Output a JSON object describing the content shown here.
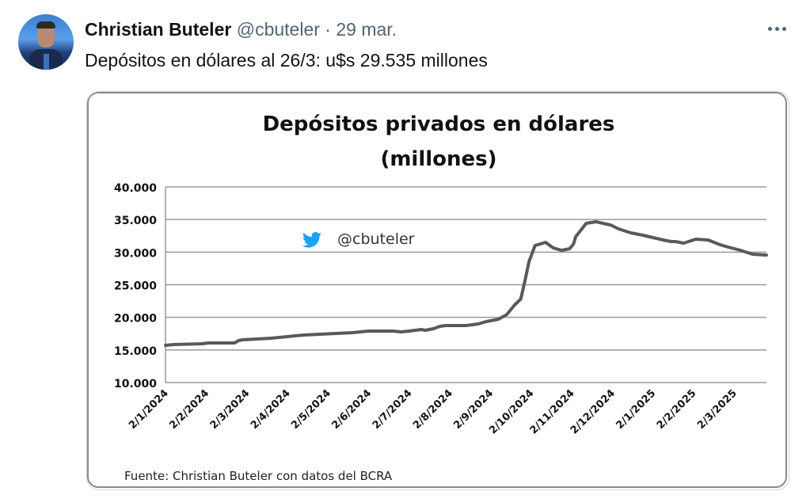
{
  "tweet": {
    "author_name": "Christian Buteler",
    "author_handle": "@cbuteler",
    "separator": "·",
    "date": "29 mar.",
    "text": "Depósitos en dólares al 26/3: u$s 29.535 millones",
    "more_icon": "more-horizontal-icon"
  },
  "chart_data": {
    "type": "line",
    "title": "Depósitos privados en dólares",
    "subtitle": "(millones)",
    "xlabel": "",
    "ylabel": "",
    "watermark": "@cbuteler",
    "watermark_icon": "twitter-bird-icon",
    "source": "Fuente: Christian Buteler con datos del BCRA",
    "ylim": [
      10000,
      40000
    ],
    "yticks": [
      40000,
      35000,
      30000,
      25000,
      20000,
      15000,
      10000
    ],
    "ytick_labels": [
      "40.000",
      "35.000",
      "30.000",
      "25.000",
      "20.000",
      "15.000",
      "10.000"
    ],
    "xtick_labels": [
      "2/1/2024",
      "2/2/2024",
      "2/3/2024",
      "2/4/2024",
      "2/5/2024",
      "2/6/2024",
      "2/7/2024",
      "2/8/2024",
      "2/9/2024",
      "2/10/2024",
      "2/11/2024",
      "2/12/2024",
      "2/1/2025",
      "2/2/2025",
      "2/3/2025"
    ],
    "x_range_months": [
      0,
      14.8
    ],
    "grid": true,
    "line_color": "#595959",
    "series": [
      {
        "name": "Depósitos privados en dólares",
        "x_months": [
          0,
          0.2,
          0.9,
          1.06,
          1.7,
          1.8,
          1.9,
          2.6,
          3.4,
          3.8,
          4.6,
          5.0,
          5.6,
          5.8,
          6.0,
          6.3,
          6.4,
          6.5,
          6.6,
          6.76,
          6.9,
          7.4,
          7.7,
          7.9,
          8.2,
          8.4,
          8.6,
          8.75,
          8.85,
          8.95,
          9.1,
          9.36,
          9.55,
          9.75,
          9.95,
          10.05,
          10.1,
          10.36,
          10.6,
          10.96,
          11.16,
          11.46,
          11.76,
          12.26,
          12.46,
          12.56,
          12.76,
          13.06,
          13.36,
          13.66,
          13.86,
          14.16,
          14.46,
          14.8
        ],
        "values": [
          15710,
          15830,
          15950,
          16070,
          16070,
          16440,
          16560,
          16800,
          17290,
          17410,
          17650,
          17900,
          17900,
          17770,
          17900,
          18140,
          18020,
          18140,
          18260,
          18620,
          18750,
          18750,
          18990,
          19350,
          19720,
          20400,
          21900,
          22800,
          25550,
          28500,
          31010,
          31500,
          30650,
          30280,
          30520,
          31250,
          32350,
          34410,
          34660,
          34170,
          33560,
          32960,
          32590,
          31860,
          31620,
          31620,
          31380,
          31980,
          31860,
          31130,
          30770,
          30280,
          29680,
          29550
        ]
      }
    ]
  }
}
